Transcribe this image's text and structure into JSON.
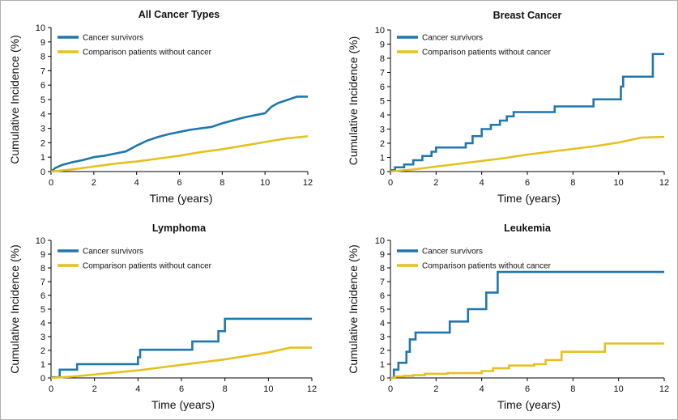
{
  "colors": {
    "survivors": "#1f77ae",
    "comparison": "#e6c01e"
  },
  "chart_data": [
    {
      "type": "line",
      "title": "All Cancer Types",
      "xlabel": "Time (years)",
      "ylabel": "Cumulative Incidence (%)",
      "xlim": [
        0,
        12
      ],
      "ylim": [
        0,
        10
      ],
      "xticks": [
        "0",
        "2",
        "4",
        "6",
        "8",
        "10",
        "12"
      ],
      "yticks": [
        "0",
        "1",
        "2",
        "3",
        "4",
        "5",
        "6",
        "7",
        "8",
        "9",
        "10"
      ],
      "legend_position": "top-left",
      "grid": false,
      "series": [
        {
          "name": "Cancer survivors",
          "color": "#1f77ae",
          "step": false,
          "x": [
            0,
            0.2,
            0.5,
            1,
            1.5,
            2,
            2.5,
            3,
            3.5,
            4,
            4.5,
            5,
            5.5,
            6,
            6.5,
            7,
            7.5,
            8,
            8.5,
            9,
            9.5,
            10,
            10.3,
            10.6,
            11,
            11.5,
            12
          ],
          "y": [
            0,
            0.25,
            0.45,
            0.65,
            0.8,
            1.0,
            1.1,
            1.25,
            1.4,
            1.8,
            2.15,
            2.4,
            2.6,
            2.75,
            2.9,
            3.0,
            3.1,
            3.35,
            3.55,
            3.75,
            3.9,
            4.05,
            4.5,
            4.75,
            4.95,
            5.2,
            5.2
          ]
        },
        {
          "name": "Comparison patients without cancer",
          "color": "#e6c01e",
          "step": false,
          "x": [
            0,
            1,
            2,
            3,
            4,
            5,
            6,
            7,
            8,
            9,
            10,
            11,
            12
          ],
          "y": [
            0,
            0.15,
            0.35,
            0.55,
            0.7,
            0.9,
            1.1,
            1.35,
            1.55,
            1.8,
            2.05,
            2.3,
            2.45
          ]
        }
      ]
    },
    {
      "type": "line",
      "title": "Breast Cancer",
      "xlabel": "Time (years)",
      "ylabel": "Cumulative Incidence (%)",
      "xlim": [
        0,
        12
      ],
      "ylim": [
        0,
        10
      ],
      "xticks": [
        "0",
        "2",
        "4",
        "6",
        "8",
        "10",
        "12"
      ],
      "yticks": [
        "0",
        "1",
        "2",
        "3",
        "4",
        "5",
        "6",
        "7",
        "8",
        "9",
        "10"
      ],
      "legend_position": "top-left",
      "grid": false,
      "series": [
        {
          "name": "Cancer survivors",
          "color": "#1f77ae",
          "step": true,
          "x": [
            0,
            0.2,
            0.6,
            1.0,
            1.4,
            1.8,
            2.0,
            3.3,
            3.6,
            4.0,
            4.4,
            4.8,
            5.1,
            5.4,
            7.2,
            8.9,
            10.1,
            10.2,
            11.5,
            12
          ],
          "y": [
            0.1,
            0.3,
            0.5,
            0.8,
            1.1,
            1.4,
            1.7,
            2.0,
            2.5,
            3.0,
            3.3,
            3.6,
            3.9,
            4.2,
            4.6,
            5.1,
            6.0,
            6.7,
            8.3,
            8.3
          ]
        },
        {
          "name": "Comparison patients without cancer",
          "color": "#e6c01e",
          "step": false,
          "x": [
            0,
            1,
            2,
            3,
            4,
            5,
            6,
            7,
            8,
            9,
            10,
            11,
            12
          ],
          "y": [
            0,
            0.15,
            0.35,
            0.55,
            0.75,
            0.95,
            1.2,
            1.4,
            1.6,
            1.8,
            2.05,
            2.4,
            2.45
          ]
        }
      ]
    },
    {
      "type": "line",
      "title": "Lymphoma",
      "xlabel": "Time (years)",
      "ylabel": "Cumulative Incidence (%)",
      "xlim": [
        0,
        12
      ],
      "ylim": [
        0,
        10
      ],
      "xticks": [
        "0",
        "2",
        "4",
        "6",
        "8",
        "10",
        "12"
      ],
      "yticks": [
        "0",
        "1",
        "2",
        "3",
        "4",
        "5",
        "6",
        "7",
        "8",
        "9",
        "10"
      ],
      "legend_position": "top-left",
      "grid": false,
      "series": [
        {
          "name": "Cancer survivors",
          "color": "#1f77ae",
          "step": true,
          "x": [
            0,
            0.4,
            1.2,
            4.0,
            4.1,
            6.5,
            7.7,
            8.0,
            12
          ],
          "y": [
            0.05,
            0.6,
            1.0,
            1.5,
            2.05,
            2.65,
            3.4,
            4.3,
            4.3
          ]
        },
        {
          "name": "Comparison patients without cancer",
          "color": "#e6c01e",
          "step": false,
          "x": [
            0,
            1,
            2,
            3,
            4,
            5,
            6,
            7,
            8,
            9,
            10,
            11,
            12
          ],
          "y": [
            0,
            0.1,
            0.25,
            0.4,
            0.55,
            0.75,
            0.95,
            1.15,
            1.35,
            1.6,
            1.85,
            2.2,
            2.2
          ]
        }
      ]
    },
    {
      "type": "line",
      "title": "Leukemia",
      "xlabel": "Time (years)",
      "ylabel": "Cumulative Incidence (%)",
      "xlim": [
        0,
        12
      ],
      "ylim": [
        0,
        10
      ],
      "xticks": [
        "0",
        "2",
        "4",
        "6",
        "8",
        "10",
        "12"
      ],
      "yticks": [
        "0",
        "1",
        "2",
        "3",
        "4",
        "5",
        "6",
        "7",
        "8",
        "9",
        "10"
      ],
      "legend_position": "top-left",
      "grid": false,
      "series": [
        {
          "name": "Cancer survivors",
          "color": "#1f77ae",
          "step": true,
          "x": [
            0,
            0.15,
            0.35,
            0.7,
            0.85,
            1.1,
            2.6,
            3.4,
            4.2,
            4.7,
            12
          ],
          "y": [
            0,
            0.6,
            1.1,
            1.9,
            2.8,
            3.3,
            4.1,
            5.0,
            6.2,
            7.7,
            7.7
          ]
        },
        {
          "name": "Comparison patients without cancer",
          "color": "#e6c01e",
          "step": true,
          "x": [
            0,
            0.2,
            0.6,
            1.0,
            1.5,
            2.5,
            4.0,
            4.5,
            5.2,
            6.3,
            6.8,
            7.5,
            9.4,
            12
          ],
          "y": [
            0,
            0.1,
            0.15,
            0.2,
            0.3,
            0.35,
            0.5,
            0.7,
            0.9,
            1.0,
            1.3,
            1.9,
            2.5,
            2.5
          ]
        }
      ]
    }
  ]
}
